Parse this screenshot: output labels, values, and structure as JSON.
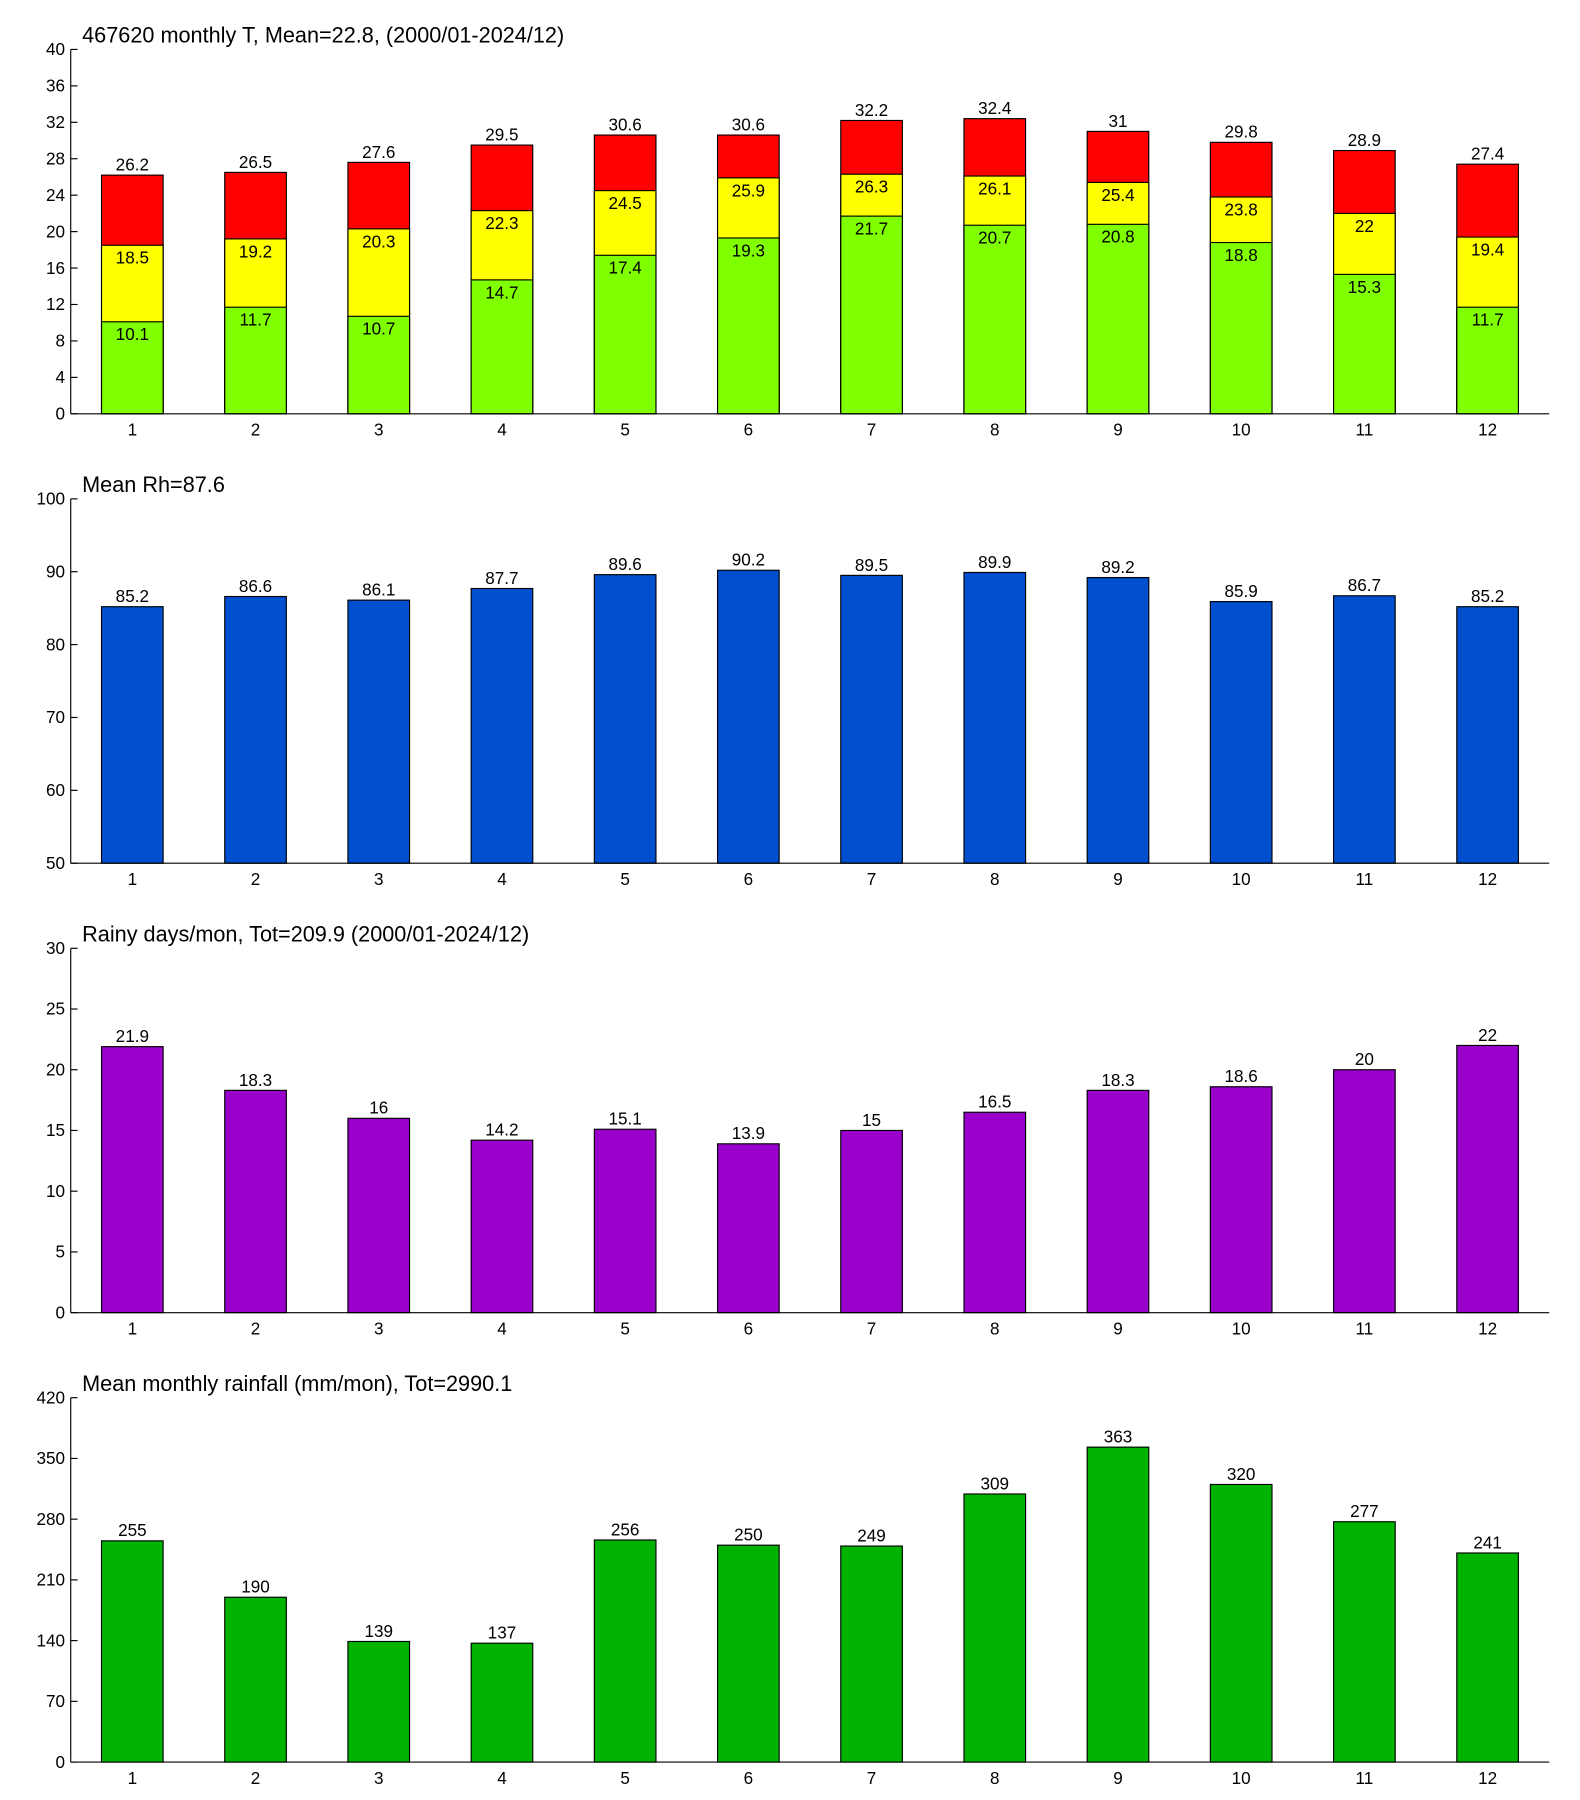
{
  "chart_data": [
    {
      "type": "bar",
      "title": "467620 monthly T, Mean=22.8, (2000/01-2024/12)",
      "categories": [
        "1",
        "2",
        "3",
        "4",
        "5",
        "6",
        "7",
        "8",
        "9",
        "10",
        "11",
        "12"
      ],
      "series": [
        {
          "color": "#ff0000",
          "values": [
            26.2,
            26.5,
            27.6,
            29.5,
            30.6,
            30.6,
            32.2,
            32.4,
            31,
            29.8,
            28.9,
            27.4
          ]
        },
        {
          "color": "#ffff00",
          "values": [
            18.5,
            19.2,
            20.3,
            22.3,
            24.5,
            25.9,
            26.3,
            26.1,
            25.4,
            23.8,
            22,
            19.4
          ]
        },
        {
          "color": "#80ff00",
          "values": [
            10.1,
            11.7,
            10.7,
            14.7,
            17.4,
            19.3,
            21.7,
            20.7,
            20.8,
            18.8,
            15.3,
            11.7
          ]
        }
      ],
      "ylim": [
        0,
        40
      ],
      "yticks": [
        0,
        4,
        8,
        12,
        16,
        20,
        24,
        28,
        32,
        36,
        40
      ]
    },
    {
      "type": "bar",
      "title": "Mean Rh=87.6",
      "categories": [
        "1",
        "2",
        "3",
        "4",
        "5",
        "6",
        "7",
        "8",
        "9",
        "10",
        "11",
        "12"
      ],
      "values": [
        85.2,
        86.6,
        86.1,
        87.7,
        89.6,
        90.2,
        89.5,
        89.9,
        89.2,
        85.9,
        86.7,
        85.2
      ],
      "color": "#004fcf",
      "ylim": [
        50,
        100
      ],
      "yticks": [
        50,
        60,
        70,
        80,
        90,
        100
      ]
    },
    {
      "type": "bar",
      "title": "Rainy days/mon, Tot=209.9 (2000/01-2024/12)",
      "categories": [
        "1",
        "2",
        "3",
        "4",
        "5",
        "6",
        "7",
        "8",
        "9",
        "10",
        "11",
        "12"
      ],
      "values": [
        21.9,
        18.3,
        16,
        14.2,
        15.1,
        13.9,
        15,
        16.5,
        18.3,
        18.6,
        20,
        22
      ],
      "color": "#9900cc",
      "ylim": [
        0,
        30
      ],
      "yticks": [
        0,
        5,
        10,
        15,
        20,
        25,
        30
      ]
    },
    {
      "type": "bar",
      "title": "Mean monthly rainfall (mm/mon), Tot=2990.1",
      "categories": [
        "1",
        "2",
        "3",
        "4",
        "5",
        "6",
        "7",
        "8",
        "9",
        "10",
        "11",
        "12"
      ],
      "values": [
        255,
        190,
        139,
        137,
        256,
        250,
        249,
        309,
        363,
        320,
        277,
        241
      ],
      "color": "#00b300",
      "ylim": [
        0,
        420
      ],
      "yticks": [
        0,
        70,
        140,
        210,
        280,
        350,
        420
      ]
    }
  ]
}
